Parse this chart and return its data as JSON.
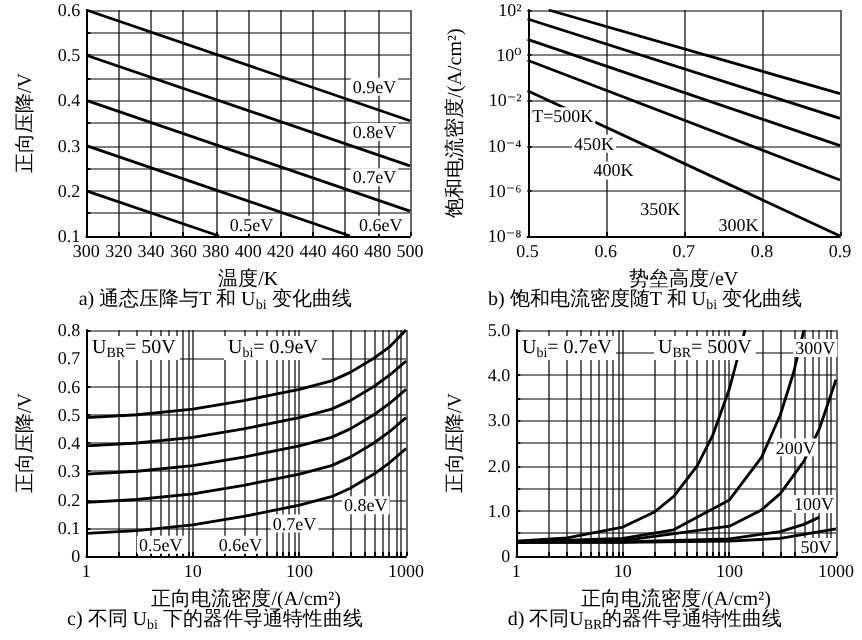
{
  "chart_data": [
    {
      "type": "line",
      "title": "a) 通态压降与T 和 U$_{bi}$ 变化曲线",
      "xlabel": "温度/K",
      "ylabel": "正向压降/V",
      "xlim": [
        300,
        500
      ],
      "xticks": [
        300,
        320,
        340,
        360,
        380,
        400,
        420,
        440,
        460,
        480,
        500
      ],
      "ylim": [
        0.1,
        0.6
      ],
      "yticks": [
        0.1,
        {
          "value": 0.15,
          "label": null
        },
        0.2,
        {
          "value": 0.25,
          "label": null
        },
        0.3,
        {
          "value": 0.35,
          "label": null
        },
        0.4,
        {
          "value": 0.45,
          "label": null
        },
        0.5,
        {
          "value": 0.55,
          "label": null
        },
        0.6
      ],
      "grid": true,
      "series": [
        {
          "color": "#000000",
          "x": [
            300,
            500
          ],
          "values": [
            0.6,
            0.355
          ]
        },
        {
          "color": "#000000",
          "x": [
            300,
            500
          ],
          "values": [
            0.5,
            0.255
          ]
        },
        {
          "color": "#000000",
          "x": [
            300,
            500
          ],
          "values": [
            0.4,
            0.155
          ]
        },
        {
          "color": "#000000",
          "x": [
            300,
            463
          ],
          "values": [
            0.3,
            0.1
          ]
        },
        {
          "color": "#000000",
          "x": [
            300,
            382
          ],
          "values": [
            0.2,
            0.1
          ]
        }
      ],
      "annotations": [
        {
          "text": "0.9eV",
          "x": 478,
          "y": 0.43
        },
        {
          "text": "0.8eV",
          "x": 478,
          "y": 0.33
        },
        {
          "text": "0.7eV",
          "x": 478,
          "y": 0.23
        },
        {
          "text": "0.6eV",
          "x": 482,
          "y": 0.125
        },
        {
          "text": "0.5eV",
          "x": 402,
          "y": 0.125
        }
      ]
    },
    {
      "type": "line",
      "title": "b) 饱和电流密度随T 和 U$_{bi}$ 变化曲线",
      "xlabel": "势垒高度/eV",
      "ylabel": "饱和电流密度/(A/cm²)",
      "xlim": [
        0.5,
        0.9
      ],
      "xticks": [
        0.5,
        0.6,
        0.7,
        0.8,
        0.9
      ],
      "ylim": [
        1e-08,
        100
      ],
      "yticks": [
        {
          "value": 1e-08,
          "label": "10⁻⁸"
        },
        {
          "value": 1e-06,
          "label": "10⁻⁶"
        },
        {
          "value": 0.0001,
          "label": "10⁻⁴"
        },
        {
          "value": 0.01,
          "label": "10⁻²"
        },
        {
          "value": 1,
          "label": "10⁰"
        },
        {
          "value": 100,
          "label": "10²"
        }
      ],
      "log": "y",
      "grid": true,
      "series": [
        {
          "color": "#000000",
          "x": [
            0.527,
            0.9
          ],
          "values": [
            100,
            0.02
          ]
        },
        {
          "color": "#000000",
          "x": [
            0.5,
            0.9
          ],
          "values": [
            40,
            0.0016
          ]
        },
        {
          "color": "#000000",
          "x": [
            0.5,
            0.9
          ],
          "values": [
            5,
            0.0001
          ]
        },
        {
          "color": "#000000",
          "x": [
            0.5,
            0.9
          ],
          "values": [
            0.6,
            3e-06
          ]
        },
        {
          "color": "#000000",
          "x": [
            0.5,
            0.9
          ],
          "values": [
            0.027,
            1e-08
          ]
        }
      ],
      "annotations": [
        {
          "text": "T=500K",
          "x": 0.545,
          "y": 0.002
        },
        {
          "text": "450K",
          "x": 0.585,
          "y": 0.00012
        },
        {
          "text": "400K",
          "x": 0.61,
          "y": 8e-06
        },
        {
          "text": "350K",
          "x": 0.67,
          "y": 1.5e-07
        },
        {
          "text": "300K",
          "x": 0.77,
          "y": 3e-08
        }
      ]
    },
    {
      "type": "line",
      "title": "c) 不同 U$_{bi}$ 下的器件导通特性曲线",
      "xlabel": "正向电流密度/(A/cm²)",
      "ylabel": "正向压降/V",
      "xlim": [
        1,
        1000
      ],
      "xticks": [
        1,
        {
          "value": 2,
          "label": null
        },
        {
          "value": 3,
          "label": null
        },
        {
          "value": 4,
          "label": null
        },
        {
          "value": 5,
          "label": null
        },
        {
          "value": 6,
          "label": null
        },
        {
          "value": 7,
          "label": null
        },
        {
          "value": 8,
          "label": null
        },
        {
          "value": 9,
          "label": null
        },
        10,
        {
          "value": 20,
          "label": null
        },
        {
          "value": 30,
          "label": null
        },
        {
          "value": 40,
          "label": null
        },
        {
          "value": 50,
          "label": null
        },
        {
          "value": 60,
          "label": null
        },
        {
          "value": 70,
          "label": null
        },
        {
          "value": 80,
          "label": null
        },
        {
          "value": 90,
          "label": null
        },
        100,
        {
          "value": 200,
          "label": null
        },
        {
          "value": 300,
          "label": null
        },
        {
          "value": 400,
          "label": null
        },
        {
          "value": 500,
          "label": null
        },
        {
          "value": 600,
          "label": null
        },
        {
          "value": 700,
          "label": null
        },
        {
          "value": 800,
          "label": null
        },
        {
          "value": 900,
          "label": null
        },
        1000
      ],
      "ylim": [
        0,
        0.8
      ],
      "yticks": [
        0,
        0.1,
        0.2,
        0.3,
        0.4,
        0.5,
        0.6,
        0.7,
        0.8
      ],
      "log": "x",
      "grid": true,
      "series": [
        {
          "color": "#000000",
          "x": [
            1,
            3,
            10,
            30,
            100,
            200,
            300,
            500,
            700,
            1000
          ],
          "values": [
            0.49,
            0.5,
            0.52,
            0.55,
            0.59,
            0.62,
            0.65,
            0.7,
            0.74,
            0.8
          ]
        },
        {
          "color": "#000000",
          "x": [
            1,
            3,
            10,
            30,
            100,
            200,
            300,
            500,
            700,
            1000
          ],
          "values": [
            0.39,
            0.4,
            0.42,
            0.45,
            0.49,
            0.52,
            0.55,
            0.6,
            0.64,
            0.69
          ]
        },
        {
          "color": "#000000",
          "x": [
            1,
            3,
            10,
            30,
            100,
            200,
            300,
            500,
            700,
            1000
          ],
          "values": [
            0.29,
            0.3,
            0.32,
            0.35,
            0.39,
            0.42,
            0.45,
            0.5,
            0.54,
            0.59
          ]
        },
        {
          "color": "#000000",
          "x": [
            1,
            3,
            10,
            30,
            100,
            200,
            300,
            500,
            700,
            1000
          ],
          "values": [
            0.19,
            0.2,
            0.22,
            0.25,
            0.29,
            0.32,
            0.35,
            0.4,
            0.44,
            0.49
          ]
        },
        {
          "color": "#000000",
          "x": [
            1,
            3,
            10,
            30,
            100,
            200,
            300,
            500,
            700,
            1000
          ],
          "values": [
            0.08,
            0.09,
            0.11,
            0.14,
            0.18,
            0.21,
            0.24,
            0.29,
            0.33,
            0.38
          ]
        }
      ],
      "annotations": [
        "U$_{BR}$= 50V",
        "U$_{bi}$= 0.9eV",
        {
          "text": "0.5eV",
          "x": 5,
          "y": 0.04
        },
        {
          "text": "0.6eV",
          "x": 28,
          "y": 0.04
        },
        {
          "text": "0.7eV",
          "x": 90,
          "y": 0.115
        },
        {
          "text": "0.8eV",
          "x": 420,
          "y": 0.18
        }
      ]
    },
    {
      "type": "line",
      "title": "d) 不同U$_{BR}$的器件导通特性曲线",
      "xlabel": "正向电流密度/(A/cm²)",
      "ylabel": "正向压降/V",
      "xlim": [
        1,
        1000
      ],
      "xticks": [
        1,
        {
          "value": 2,
          "label": null
        },
        {
          "value": 3,
          "label": null
        },
        {
          "value": 4,
          "label": null
        },
        {
          "value": 5,
          "label": null
        },
        {
          "value": 6,
          "label": null
        },
        {
          "value": 7,
          "label": null
        },
        {
          "value": 8,
          "label": null
        },
        {
          "value": 9,
          "label": null
        },
        10,
        {
          "value": 20,
          "label": null
        },
        {
          "value": 30,
          "label": null
        },
        {
          "value": 40,
          "label": null
        },
        {
          "value": 50,
          "label": null
        },
        {
          "value": 60,
          "label": null
        },
        {
          "value": 70,
          "label": null
        },
        {
          "value": 80,
          "label": null
        },
        {
          "value": 90,
          "label": null
        },
        100,
        {
          "value": 200,
          "label": null
        },
        {
          "value": 300,
          "label": null
        },
        {
          "value": 400,
          "label": null
        },
        {
          "value": 500,
          "label": null
        },
        {
          "value": 600,
          "label": null
        },
        {
          "value": 700,
          "label": null
        },
        {
          "value": 800,
          "label": null
        },
        {
          "value": 900,
          "label": null
        },
        1000
      ],
      "ylim": [
        0,
        5
      ],
      "yticks": [
        0,
        {
          "value": 0.5,
          "label": null
        },
        {
          "value": 1,
          "label": "1.0"
        },
        {
          "value": 1.5,
          "label": null
        },
        {
          "value": 2,
          "label": "2.0"
        },
        {
          "value": 2.5,
          "label": null
        },
        {
          "value": 3,
          "label": "3.0"
        },
        {
          "value": 3.5,
          "label": null
        },
        {
          "value": 4,
          "label": "4.0"
        },
        {
          "value": 4.5,
          "label": null
        },
        {
          "value": 5,
          "label": "5.0"
        }
      ],
      "log": "x",
      "grid": true,
      "series": [
        {
          "color": "#000000",
          "x": [
            1,
            3,
            10,
            20,
            30,
            50,
            70,
            100,
            140
          ],
          "values": [
            0.33,
            0.4,
            0.64,
            0.98,
            1.32,
            2.0,
            2.68,
            3.7,
            5.0
          ]
        },
        {
          "color": "#000000",
          "x": [
            1,
            10,
            30,
            100,
            200,
            300,
            400,
            500
          ],
          "values": [
            0.31,
            0.39,
            0.58,
            1.24,
            2.18,
            3.12,
            4.06,
            5.0
          ]
        },
        {
          "color": "#000000",
          "x": [
            1,
            10,
            100,
            200,
            300,
            500,
            700,
            1000
          ],
          "values": [
            0.3,
            0.34,
            0.66,
            1.02,
            1.38,
            2.1,
            2.82,
            3.9
          ]
        },
        {
          "color": "#000000",
          "x": [
            1,
            10,
            100,
            300,
            500,
            700
          ],
          "values": [
            0.3,
            0.31,
            0.38,
            0.54,
            0.7,
            0.86
          ]
        },
        {
          "color": "#000000",
          "x": [
            1,
            10,
            100,
            300,
            1000
          ],
          "values": [
            0.3,
            0.3,
            0.33,
            0.39,
            0.6
          ]
        }
      ],
      "annotations": [
        "U$_{bi}$= 0.7eV",
        "U$_{BR}$= 500V",
        {
          "text": "300V",
          "x": 640,
          "y": 4.6
        },
        {
          "text": "200V",
          "x": 420,
          "y": 2.4
        },
        {
          "text": "100V",
          "x": 620,
          "y": 1.15
        },
        {
          "text": "50V",
          "x": 650,
          "y": 0.2
        }
      ]
    }
  ]
}
